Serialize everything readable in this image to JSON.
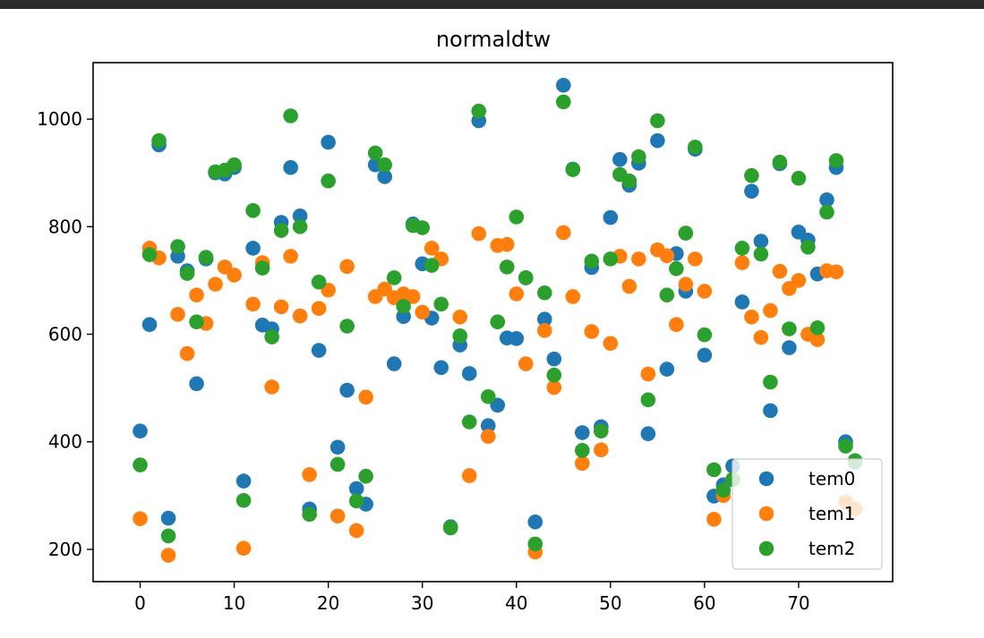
{
  "window": {
    "title": ""
  },
  "chart_data": {
    "type": "scatter",
    "title": "normaldtw",
    "xlabel": "",
    "ylabel": "",
    "xlim": [
      -5,
      80
    ],
    "ylim": [
      140,
      1105
    ],
    "xticks": [
      0,
      10,
      20,
      30,
      40,
      50,
      60,
      70
    ],
    "yticks": [
      200,
      400,
      600,
      800,
      1000
    ],
    "grid": false,
    "legend_position": "lower-right",
    "x": [
      0,
      1,
      2,
      3,
      4,
      5,
      6,
      7,
      8,
      9,
      10,
      11,
      12,
      13,
      14,
      15,
      16,
      17,
      18,
      19,
      20,
      21,
      22,
      23,
      24,
      25,
      26,
      27,
      28,
      29,
      30,
      31,
      32,
      33,
      34,
      35,
      36,
      37,
      38,
      39,
      40,
      41,
      42,
      43,
      44,
      45,
      46,
      47,
      48,
      49,
      50,
      51,
      52,
      53,
      54,
      55,
      56,
      57,
      58,
      59,
      60,
      61,
      62,
      63,
      64,
      65,
      66,
      67,
      68,
      69,
      70,
      71,
      72,
      73,
      74,
      75,
      76
    ],
    "series": [
      {
        "name": "tem0",
        "color": "#1f77b4",
        "values": [
          420,
          618,
          952,
          258,
          745,
          718,
          508,
          740,
          900,
          898,
          910,
          327,
          760,
          617,
          610,
          808,
          910,
          820,
          275,
          570,
          957,
          390,
          496,
          313,
          284,
          915,
          893,
          545,
          633,
          805,
          731,
          630,
          538,
          242,
          580,
          527,
          997,
          430,
          468,
          593,
          592,
          705,
          251,
          628,
          554,
          1063,
          907,
          417,
          724,
          428,
          817,
          925,
          877,
          918,
          415,
          960,
          535,
          750,
          680,
          944,
          561,
          299,
          320,
          355,
          660,
          866,
          773,
          458,
          917,
          575,
          790,
          775,
          712,
          850,
          910,
          400,
          362
        ]
      },
      {
        "name": "tem1",
        "color": "#ff7f0e",
        "values": [
          257,
          760,
          742,
          189,
          637,
          564,
          673,
          620,
          693,
          725,
          710,
          202,
          656,
          733,
          502,
          651,
          745,
          634,
          339,
          648,
          682,
          262,
          726,
          235,
          483,
          670,
          684,
          668,
          675,
          670,
          641,
          760,
          740,
          240,
          632,
          337,
          787,
          410,
          765,
          767,
          675,
          545,
          195,
          607,
          501,
          789,
          670,
          360,
          605,
          385,
          583,
          745,
          689,
          740,
          526,
          757,
          746,
          618,
          693,
          740,
          680,
          256,
          300,
          330,
          733,
          632,
          594,
          644,
          717,
          685,
          700,
          600,
          590,
          718,
          716,
          288,
          275
        ]
      },
      {
        "name": "tem2",
        "color": "#2ca02c",
        "values": [
          357,
          748,
          960,
          225,
          763,
          713,
          623,
          743,
          902,
          905,
          915,
          291,
          830,
          723,
          595,
          793,
          1006,
          800,
          265,
          697,
          885,
          358,
          615,
          290,
          336,
          937,
          915,
          705,
          652,
          802,
          798,
          728,
          656,
          240,
          597,
          437,
          1015,
          484,
          623,
          725,
          818,
          705,
          210,
          677,
          524,
          1032,
          906,
          384,
          736,
          420,
          740,
          897,
          885,
          930,
          478,
          997,
          673,
          722,
          788,
          948,
          599,
          348,
          310,
          330,
          760,
          895,
          749,
          511,
          920,
          610,
          890,
          762,
          612,
          827,
          923,
          392,
          365
        ]
      }
    ]
  }
}
